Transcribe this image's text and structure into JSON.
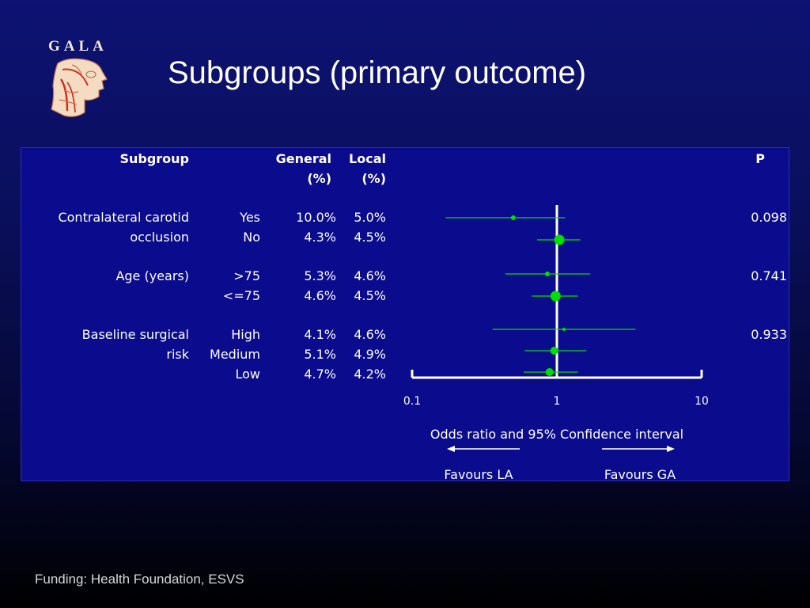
{
  "logo": {
    "text": "GALA"
  },
  "title": "Subgroups (primary outcome)",
  "table": {
    "headers": {
      "subgroup": "Subgroup",
      "general_line1": "General",
      "general_line2": "(%)",
      "local_line1": "Local",
      "local_line2": "(%)",
      "p": "P"
    },
    "groups": [
      {
        "name_line1": "Contralateral carotid",
        "name_line2": "occlusion",
        "p": "0.098",
        "rows": [
          {
            "level": "Yes",
            "general": "10.0%",
            "local": "5.0%"
          },
          {
            "level": "No",
            "general": "4.3%",
            "local": "4.5%"
          }
        ]
      },
      {
        "name_line1": "Age (years)",
        "name_line2": "",
        "p": "0.741",
        "rows": [
          {
            "level": ">75",
            "general": "5.3%",
            "local": "4.6%"
          },
          {
            "level": "<=75",
            "general": "4.6%",
            "local": "4.5%"
          }
        ]
      },
      {
        "name_line1": "Baseline surgical",
        "name_line2": "risk",
        "p": "0.933",
        "rows": [
          {
            "level": "High",
            "general": "4.1%",
            "local": "4.6%"
          },
          {
            "level": "Medium",
            "general": "5.1%",
            "local": "4.9%"
          },
          {
            "level": "Low",
            "general": "4.7%",
            "local": "4.2%"
          }
        ]
      }
    ]
  },
  "chart_data": {
    "type": "scatter",
    "subtype": "forest-plot",
    "x_scale": "log",
    "xlim": [
      0.1,
      10
    ],
    "reference_line": 1,
    "ticks": [
      "0.1",
      "1",
      "10"
    ],
    "xlabel": "Odds ratio and 95% Confidence interval",
    "direction_left": "Favours LA",
    "direction_right": "Favours GA",
    "color": "#00e000",
    "points": [
      {
        "row": "Contralateral carotid occlusion: Yes",
        "or": 0.5,
        "lo": 0.17,
        "hi": 1.14,
        "weight": "small"
      },
      {
        "row": "Contralateral carotid occlusion: No",
        "or": 1.04,
        "lo": 0.73,
        "hi": 1.45,
        "weight": "large"
      },
      {
        "row": "Age (years): >75",
        "or": 0.86,
        "lo": 0.44,
        "hi": 1.7,
        "weight": "small"
      },
      {
        "row": "Age (years): <=75",
        "or": 0.98,
        "lo": 0.67,
        "hi": 1.4,
        "weight": "large"
      },
      {
        "row": "Baseline surgical risk: High",
        "or": 1.12,
        "lo": 0.36,
        "hi": 3.5,
        "weight": "tiny"
      },
      {
        "row": "Baseline surgical risk: Medium",
        "or": 0.96,
        "lo": 0.6,
        "hi": 1.6,
        "weight": "medium"
      },
      {
        "row": "Baseline surgical risk: Low",
        "or": 0.89,
        "lo": 0.59,
        "hi": 1.4,
        "weight": "medium"
      }
    ]
  },
  "footer": "Funding: Health Foundation, ESVS"
}
